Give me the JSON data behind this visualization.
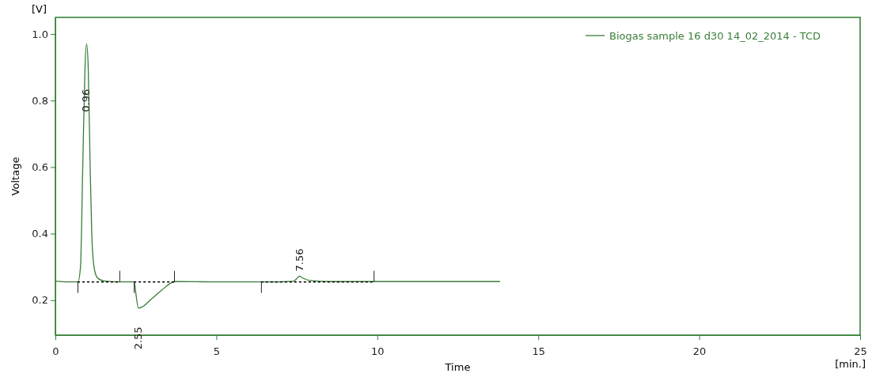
{
  "chart_data": {
    "type": "line",
    "xlabel": "Time",
    "ylabel": "Voltage",
    "xlim": [
      0,
      25
    ],
    "xticks": [
      0,
      5,
      10,
      15,
      20,
      25
    ],
    "ylim": [
      0.095,
      1.05
    ],
    "yticks": [
      {
        "value": 0.2,
        "label": "0.2"
      },
      {
        "value": 0.4,
        "label": "0.4"
      },
      {
        "value": 0.6,
        "label": "0.6"
      },
      {
        "value": 0.8,
        "label": "0.8"
      },
      {
        "value": 1,
        "label": "1.0"
      }
    ],
    "grid": false,
    "legend": "top right",
    "line_style": "solid",
    "series": [
      {
        "name": "Biogas sample 16 d30 14_02_2014 - TCD",
        "color": "#3a7d3a",
        "x": [
          0,
          0.5,
          0.7,
          0.78,
          0.85,
          0.92,
          0.97,
          1.02,
          1.08,
          1.13,
          1.2,
          1.3,
          1.5,
          2.0,
          2.45,
          2.5,
          2.58,
          2.7,
          3.0,
          3.3,
          3.6,
          3.7,
          5,
          6.4,
          7.4,
          7.5,
          7.58,
          7.7,
          7.9,
          8.5,
          10,
          13.8
        ],
        "values": [
          0.257,
          0.255,
          0.255,
          0.3,
          0.6,
          0.9,
          0.97,
          0.9,
          0.6,
          0.4,
          0.3,
          0.268,
          0.258,
          0.255,
          0.255,
          0.22,
          0.176,
          0.18,
          0.205,
          0.23,
          0.252,
          0.256,
          0.255,
          0.255,
          0.257,
          0.265,
          0.272,
          0.266,
          0.259,
          0.256,
          0.256,
          0.256
        ]
      },
      {
        "color": "#000000",
        "line_style": "dotted",
        "x": [
          0.7,
          2.0
        ],
        "values": [
          0.255,
          0.255
        ]
      },
      {
        "color": "#000000",
        "line_style": "dotted",
        "x": [
          2.45,
          3.7
        ],
        "values": [
          0.255,
          0.255
        ]
      },
      {
        "color": "#000000",
        "line_style": "dotted",
        "x": [
          6.4,
          9.9
        ],
        "values": [
          0.255,
          0.255
        ]
      }
    ],
    "annotations": [
      {
        "text": "0.96",
        "x": 0.96,
        "y": 0.8
      },
      {
        "text": "2.55",
        "x": 2.55,
        "y": 0.176
      },
      {
        "text": "7.56",
        "x": 7.56,
        "y": 0.272
      },
      "[V]",
      "[min.]"
    ]
  }
}
